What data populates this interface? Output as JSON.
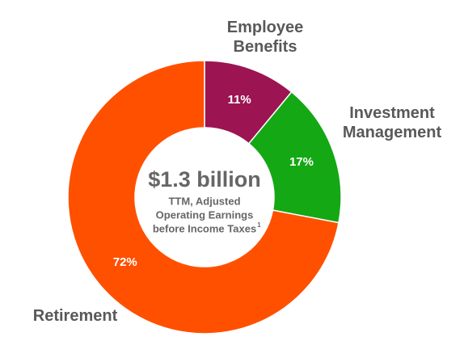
{
  "chart_data": {
    "type": "donut",
    "categories": [
      "Employee Benefits",
      "Investment Management",
      "Retirement"
    ],
    "values": [
      11,
      17,
      72
    ],
    "value_labels": [
      "11%",
      "17%",
      "72%"
    ],
    "colors": [
      "#9c1452",
      "#14a814",
      "#ff5000"
    ],
    "center_title": "$1.3 billion",
    "center_subtitle": [
      "TTM, Adjusted",
      "Operating Earnings",
      "before Income Taxes"
    ],
    "footnote_mark": "1"
  }
}
